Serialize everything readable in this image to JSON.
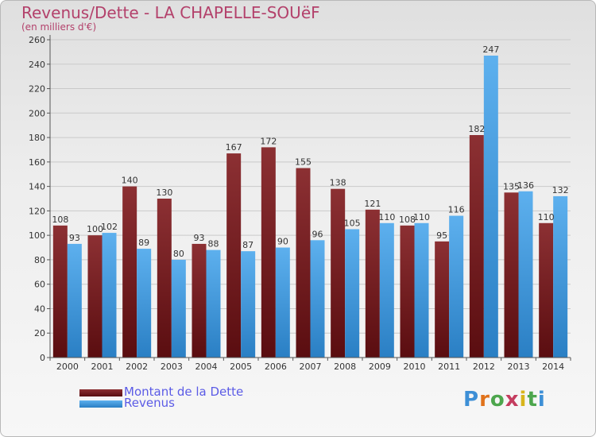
{
  "header": {
    "title": "Revenus/Dette - LA CHAPELLE-SOUëF",
    "subtitle": "(en milliers d'€)"
  },
  "legend": {
    "items": [
      {
        "label": "Montant de la Dette",
        "color": "#7f2a2d"
      },
      {
        "label": "Revenus",
        "color": "#4ea6e6"
      }
    ]
  },
  "logo": {
    "text": "Proxiti"
  },
  "chart_data": {
    "type": "bar",
    "categories": [
      "2000",
      "2001",
      "2002",
      "2003",
      "2004",
      "2005",
      "2006",
      "2007",
      "2008",
      "2009",
      "2010",
      "2011",
      "2012",
      "2013",
      "2014"
    ],
    "series": [
      {
        "name": "Montant de la Dette",
        "color": "#7f2a2d",
        "values": [
          108,
          100,
          140,
          130,
          93,
          167,
          172,
          155,
          138,
          121,
          108,
          95,
          182,
          135,
          110
        ]
      },
      {
        "name": "Revenus",
        "color": "#4ea6e6",
        "values": [
          93,
          102,
          89,
          80,
          88,
          87,
          90,
          96,
          105,
          110,
          110,
          116,
          247,
          136,
          132
        ]
      }
    ],
    "ylim": [
      0,
      260
    ],
    "yticks": [
      0,
      20,
      40,
      60,
      80,
      100,
      120,
      140,
      160,
      180,
      200,
      220,
      240,
      260
    ],
    "grid": true,
    "legend_position": "bottom-left"
  }
}
